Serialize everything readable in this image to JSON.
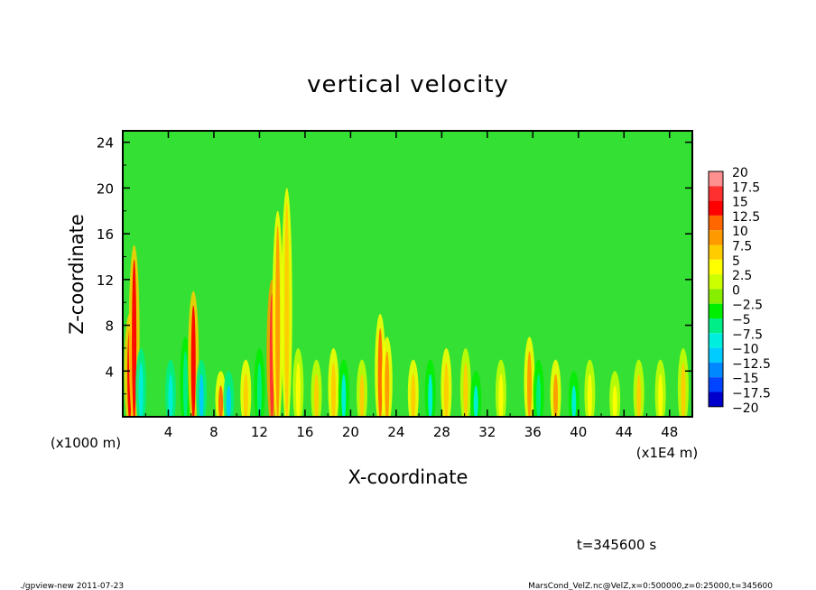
{
  "chart_data": {
    "type": "heatmap",
    "title": "vertical velocity",
    "xlabel": "X-coordinate",
    "ylabel": "Z-coordinate",
    "xunit_label": "(x1E4 m)",
    "yunit_label": "(x1000 m)",
    "xlim": [
      0,
      50
    ],
    "ylim": [
      0,
      25
    ],
    "x_ticks": [
      "4",
      "8",
      "12",
      "16",
      "20",
      "24",
      "28",
      "32",
      "36",
      "40",
      "44",
      "48"
    ],
    "y_ticks": [
      "4",
      "8",
      "12",
      "16",
      "20",
      "24"
    ],
    "colorbar": {
      "levels": [
        "20",
        "17.5",
        "15",
        "12.5",
        "10",
        "7.5",
        "5",
        "2.5",
        "0",
        "−2.5",
        "−5",
        "−7.5",
        "−10",
        "−12.5",
        "−15",
        "−17.5",
        "−20"
      ],
      "colors": [
        "#ff9090",
        "#ff3030",
        "#ff0000",
        "#ff6600",
        "#ff9900",
        "#ffcc00",
        "#ffff00",
        "#ccff00",
        "#88ee00",
        "#00ee00",
        "#00ee88",
        "#00eedd",
        "#00ccff",
        "#0088ff",
        "#0044ff",
        "#0000cc",
        "#5500aa"
      ]
    },
    "features": [
      {
        "x": 0.6,
        "height": 9,
        "value": 14
      },
      {
        "x": 1.0,
        "height": 15,
        "value": 15
      },
      {
        "x": 1.6,
        "height": 6,
        "value": -8
      },
      {
        "x": 4.2,
        "height": 5,
        "value": -8
      },
      {
        "x": 5.5,
        "height": 7,
        "value": -6
      },
      {
        "x": 6.2,
        "height": 11,
        "value": 16
      },
      {
        "x": 6.9,
        "height": 5,
        "value": -10
      },
      {
        "x": 8.6,
        "height": 4,
        "value": 12
      },
      {
        "x": 9.3,
        "height": 4,
        "value": -10
      },
      {
        "x": 10.8,
        "height": 5,
        "value": 8
      },
      {
        "x": 12.0,
        "height": 6,
        "value": -6
      },
      {
        "x": 13.1,
        "height": 12,
        "value": 18
      },
      {
        "x": 13.6,
        "height": 18,
        "value": 10
      },
      {
        "x": 14.4,
        "height": 20,
        "value": 8
      },
      {
        "x": 15.4,
        "height": 6,
        "value": 6
      },
      {
        "x": 17.0,
        "height": 5,
        "value": 7
      },
      {
        "x": 18.5,
        "height": 6,
        "value": 8
      },
      {
        "x": 19.4,
        "height": 5,
        "value": -7
      },
      {
        "x": 21.0,
        "height": 5,
        "value": 7
      },
      {
        "x": 22.6,
        "height": 9,
        "value": 12
      },
      {
        "x": 23.2,
        "height": 7,
        "value": 9
      },
      {
        "x": 25.5,
        "height": 5,
        "value": 8
      },
      {
        "x": 27.0,
        "height": 5,
        "value": -7
      },
      {
        "x": 28.4,
        "height": 6,
        "value": 8
      },
      {
        "x": 30.1,
        "height": 6,
        "value": 7
      },
      {
        "x": 31.0,
        "height": 4,
        "value": -7
      },
      {
        "x": 33.2,
        "height": 5,
        "value": 6
      },
      {
        "x": 35.7,
        "height": 7,
        "value": 11
      },
      {
        "x": 36.5,
        "height": 5,
        "value": -6
      },
      {
        "x": 38.0,
        "height": 5,
        "value": 9
      },
      {
        "x": 39.6,
        "height": 4,
        "value": -7
      },
      {
        "x": 41.0,
        "height": 5,
        "value": 6
      },
      {
        "x": 43.2,
        "height": 4,
        "value": 6
      },
      {
        "x": 45.3,
        "height": 5,
        "value": 7
      },
      {
        "x": 47.2,
        "height": 5,
        "value": 6
      },
      {
        "x": 49.2,
        "height": 6,
        "value": 7
      }
    ],
    "annotation": "t=345600 s"
  },
  "footer": {
    "left": "./gpview-new   2011-07-23",
    "right": "MarsCond_VelZ.nc@VelZ,x=0:500000,z=0:25000,t=345600"
  }
}
